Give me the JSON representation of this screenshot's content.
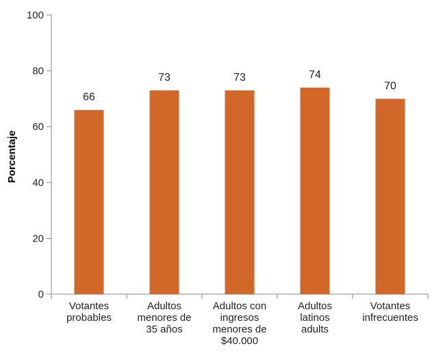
{
  "chart_data": {
    "type": "bar",
    "categories": [
      [
        "Votantes",
        "probables"
      ],
      [
        "Adultos",
        "menores de",
        "35 años"
      ],
      [
        "Adultos con",
        "ingresos",
        "menores de",
        "$40.000"
      ],
      [
        "Adultos",
        "latinos",
        "adults"
      ],
      [
        "Votantes",
        "infrecuentes"
      ]
    ],
    "values": [
      66,
      73,
      73,
      74,
      70
    ],
    "ylabel": "Porcentaje",
    "ylim": [
      0,
      100
    ],
    "yticks": [
      0,
      20,
      40,
      60,
      80,
      100
    ],
    "data_labels": [
      "66",
      "73",
      "73",
      "74",
      "70"
    ],
    "bar_color": "#D2672A",
    "axis_color": "#888888",
    "text_color": "#222222",
    "grid": false,
    "legend": "none"
  }
}
